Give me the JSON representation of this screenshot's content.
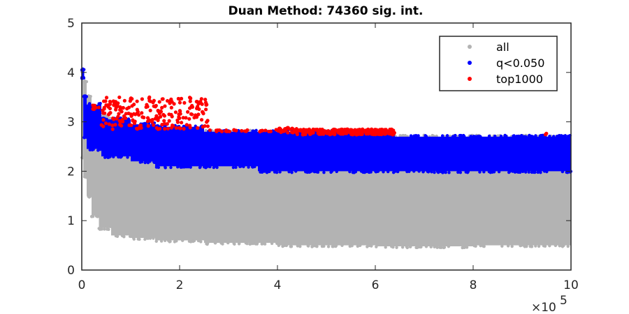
{
  "chart_data": {
    "type": "scatter",
    "title": "Duan Method: 74360 sig. int.",
    "xlabel": "",
    "ylabel": "",
    "xlim": [
      0,
      1000000
    ],
    "ylim": [
      0,
      5
    ],
    "x_exponent_label": "×10",
    "x_exponent_power": "5",
    "x_ticks": [
      0,
      200000,
      400000,
      600000,
      800000,
      1000000
    ],
    "x_tick_labels": [
      "0",
      "2",
      "4",
      "6",
      "8",
      "10"
    ],
    "y_ticks": [
      0,
      1,
      2,
      3,
      4,
      5
    ],
    "y_tick_labels": [
      "0",
      "1",
      "2",
      "3",
      "4",
      "5"
    ],
    "grid": false,
    "legend_position": "top-right",
    "series": [
      {
        "name": "all",
        "color": "#b3b3b3",
        "bands": [
          {
            "x": [
              0,
              3000
            ],
            "y": [
              2.3,
              4.0
            ]
          },
          {
            "x": [
              3000,
              10000
            ],
            "y": [
              1.9,
              3.8
            ]
          },
          {
            "x": [
              10000,
              20000
            ],
            "y": [
              1.5,
              3.5
            ]
          },
          {
            "x": [
              20000,
              35000
            ],
            "y": [
              1.1,
              3.2
            ]
          },
          {
            "x": [
              35000,
              60000
            ],
            "y": [
              0.85,
              3.1
            ]
          },
          {
            "x": [
              60000,
              100000
            ],
            "y": [
              0.7,
              2.9
            ]
          },
          {
            "x": [
              100000,
              150000
            ],
            "y": [
              0.65,
              2.9
            ]
          },
          {
            "x": [
              150000,
              250000
            ],
            "y": [
              0.6,
              2.8
            ]
          },
          {
            "x": [
              250000,
              400000
            ],
            "y": [
              0.55,
              2.8
            ]
          },
          {
            "x": [
              400000,
              600000
            ],
            "y": [
              0.5,
              2.8
            ]
          },
          {
            "x": [
              600000,
              800000
            ],
            "y": [
              0.48,
              2.7
            ]
          },
          {
            "x": [
              800000,
              1000000
            ],
            "y": [
              0.5,
              2.7
            ]
          }
        ]
      },
      {
        "name": "q<0.050",
        "color": "#0000ff",
        "bands": [
          {
            "x": [
              0,
              5000
            ],
            "y": [
              3.9,
              4.05
            ]
          },
          {
            "x": [
              3000,
              10000
            ],
            "y": [
              2.7,
              3.5
            ]
          },
          {
            "x": [
              10000,
              40000
            ],
            "y": [
              2.45,
              3.35
            ]
          },
          {
            "x": [
              40000,
              100000
            ],
            "y": [
              2.3,
              3.05
            ]
          },
          {
            "x": [
              100000,
              150000
            ],
            "y": [
              2.2,
              2.95
            ]
          },
          {
            "x": [
              150000,
              250000
            ],
            "y": [
              2.1,
              2.9
            ]
          },
          {
            "x": [
              250000,
              360000
            ],
            "y": [
              2.1,
              2.8
            ]
          },
          {
            "x": [
              360000,
              600000
            ],
            "y": [
              2.0,
              2.8
            ]
          },
          {
            "x": [
              600000,
              640000
            ],
            "y": [
              2.0,
              2.75
            ]
          },
          {
            "x": [
              640000,
              1000000
            ],
            "y": [
              2.0,
              2.7
            ]
          }
        ]
      },
      {
        "name": "top1000",
        "color": "#ff0000",
        "clusters": [
          {
            "x": [
              20000,
              40000
            ],
            "y": [
              3.25,
              3.35
            ],
            "n": 8
          },
          {
            "x": [
              40000,
              260000
            ],
            "y": [
              2.85,
              3.5
            ],
            "n": 220
          },
          {
            "x": [
              260000,
              400000
            ],
            "y": [
              2.8,
              2.85
            ],
            "n": 25
          },
          {
            "x": [
              400000,
              440000
            ],
            "y": [
              2.78,
              2.88
            ],
            "n": 25
          },
          {
            "x": [
              440000,
              640000
            ],
            "y": [
              2.74,
              2.85
            ],
            "n": 260
          },
          {
            "x": [
              945000,
              955000
            ],
            "y": [
              2.73,
              2.78
            ],
            "n": 2
          }
        ]
      }
    ]
  }
}
